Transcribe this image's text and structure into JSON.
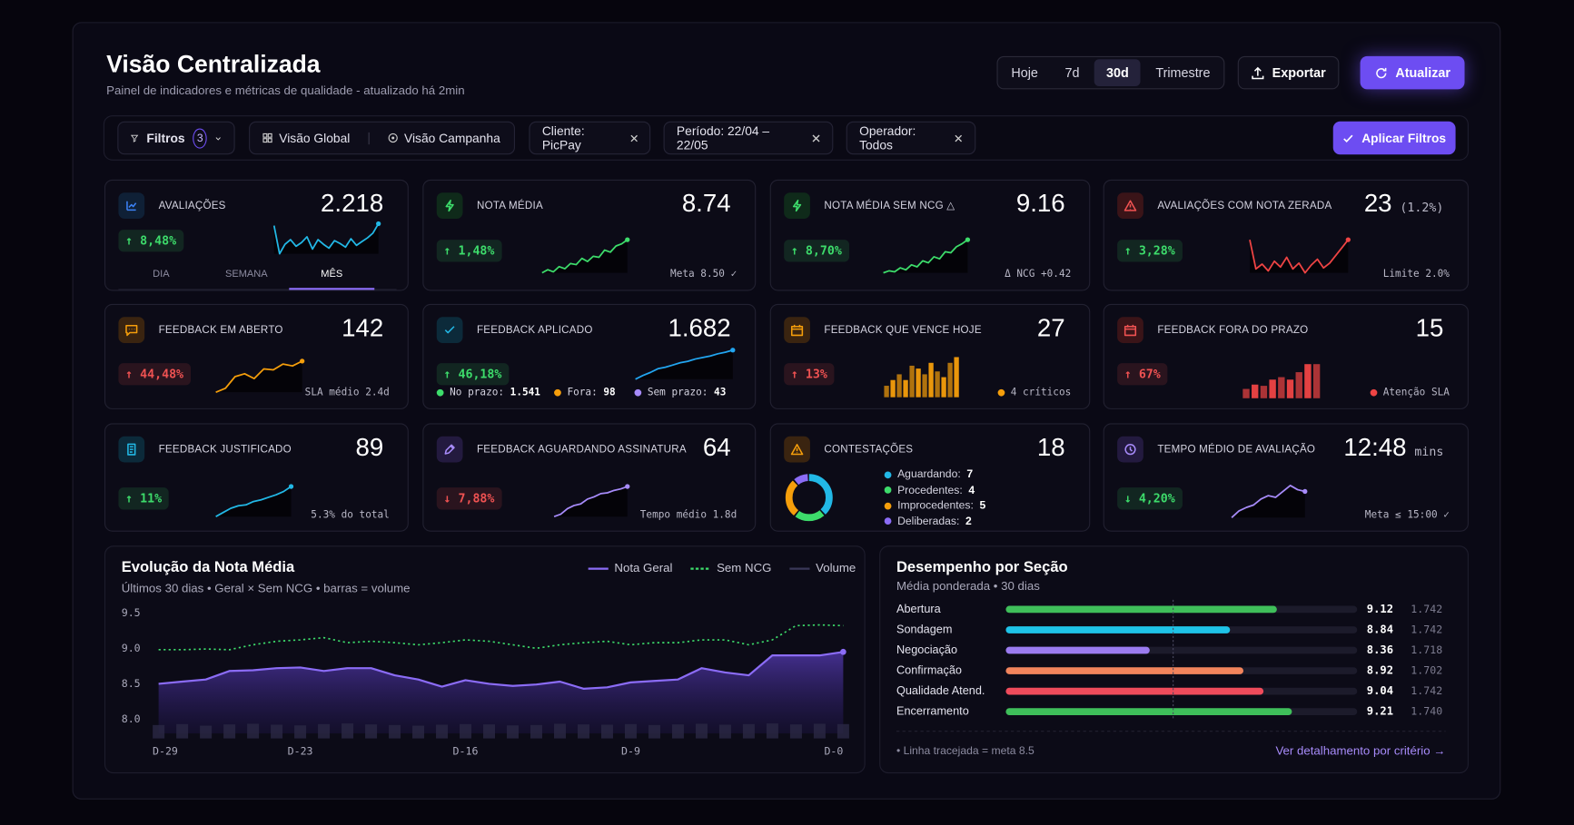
{
  "header": {
    "title": "Visão Centralizada",
    "subtitle": "Painel de indicadores e métricas de qualidade - atualizado há 2min",
    "periods": [
      "Hoje",
      "7d",
      "30d",
      "Trimestre"
    ],
    "active_period": 2,
    "export": "Exportar",
    "refresh": "Atualizar"
  },
  "filters": {
    "label": "Filtros",
    "count": 3,
    "views": [
      "Visão Global",
      "Visão Campanha"
    ],
    "chips": [
      "Cliente: PicPay",
      "Período: 22/04 – 22/05",
      "Operador: Todos"
    ],
    "apply": "Aplicar Filtros"
  },
  "kpis": [
    {
      "title": "AVALIAÇÕES",
      "value": "2.218",
      "delta": "↑ 8,48%",
      "delta_color": "#3ddc6b",
      "tabs": [
        "DIA",
        "SEMANA",
        "MÊS"
      ],
      "active_tab": 2,
      "spark": {
        "type": "line",
        "color": "#22b8e6",
        "values": [
          6,
          3,
          4,
          4.5,
          3.8,
          4.2,
          4.8,
          3.5,
          4.5,
          4,
          3.6,
          4.4,
          4.1,
          3.7,
          4.6,
          3.9,
          4.3,
          4.7,
          5.2,
          6.2
        ]
      }
    },
    {
      "title": "NOTA MÉDIA",
      "value": "8.74",
      "delta": "↑ 1,48%",
      "delta_color": "#3ddc6b",
      "note": "Meta 8.50 ✓",
      "spark": {
        "type": "line",
        "color": "#3ddc6b",
        "values": [
          2,
          2.3,
          2.1,
          2.6,
          2.4,
          2.9,
          2.8,
          3.4,
          3.1,
          3.6,
          3.5,
          4.2,
          4,
          4.6,
          4.8,
          5.2
        ]
      }
    },
    {
      "title": "NOTA MÉDIA SEM NCG △",
      "value": "9.16",
      "delta": "↑ 8,70%",
      "delta_color": "#3ddc6b",
      "note": "Δ NCG +0.42",
      "spark": {
        "type": "line",
        "color": "#3ddc6b",
        "values": [
          2,
          2.2,
          2.1,
          2.5,
          2.3,
          2.8,
          2.6,
          3.2,
          3,
          3.6,
          3.4,
          4.1,
          4,
          4.6,
          4.9,
          5.3
        ]
      }
    },
    {
      "title": "AVALIAÇÕES COM NOTA ZERADA",
      "value": "23",
      "unit": "(1.2%)",
      "delta": "↑ 3,28%",
      "delta_color": "#3ddc6b",
      "note": "Limite 2.0%",
      "spark": {
        "type": "line",
        "color": "#ef4444",
        "values": [
          6,
          3,
          3.5,
          2.8,
          3.8,
          3.2,
          4.2,
          3,
          3.6,
          2.6,
          3.4,
          4,
          3.1,
          3.6,
          4.4,
          5.2,
          6
        ]
      }
    },
    {
      "title": "FEEDBACK EM ABERTO",
      "value": "142",
      "delta": "↑ 44,48%",
      "delta_color": "#f05252",
      "note": "SLA médio 2.4d",
      "spark": {
        "type": "line",
        "color": "#f59e0b",
        "values": [
          1,
          1.4,
          2.6,
          2.9,
          2.4,
          3.4,
          3.3,
          3.9,
          3.7,
          4.2
        ]
      }
    },
    {
      "title": "FEEDBACK APLICADO",
      "value": "1.682",
      "delta": "↑ 46,18%",
      "delta_color": "#3ddc6b",
      "legend": [
        {
          "label": "No prazo:",
          "value": "1.541",
          "color": "#3ddc6b"
        },
        {
          "label": "Fora:",
          "value": "98",
          "color": "#f59e0b"
        },
        {
          "label": "Sem prazo:",
          "value": "43",
          "color": "#a78bfa"
        }
      ],
      "spark": {
        "type": "line",
        "color": "#22a5f0",
        "values": [
          1,
          1.5,
          1.9,
          2.4,
          2.6,
          2.9,
          3.2,
          3.4,
          3.7,
          3.9,
          4.1,
          4.4,
          4.6,
          4.9
        ]
      }
    },
    {
      "title": "FEEDBACK QUE VENCE HOJE",
      "value": "27",
      "delta": "↑ 13%",
      "delta_color": "#f05252",
      "note": "4 críticos",
      "note_color": "#f59e0b",
      "spark": {
        "type": "bars",
        "color": "#f59e0b",
        "values": [
          2,
          3,
          4,
          3,
          5.5,
          5,
          4,
          6,
          4.5,
          3.5,
          6,
          7
        ]
      }
    },
    {
      "title": "FEEDBACK FORA DO PRAZO",
      "value": "15",
      "delta": "↑ 67%",
      "delta_color": "#f05252",
      "note": "Atenção SLA",
      "note_color": "#ef4444",
      "spark": {
        "type": "bars",
        "color": "#ef4444",
        "values": [
          1.5,
          2.2,
          2,
          3,
          3.4,
          3,
          4.2,
          5.5,
          5.5
        ]
      }
    },
    {
      "title": "FEEDBACK JUSTIFICADO",
      "value": "89",
      "delta": "↑ 11%",
      "delta_color": "#3ddc6b",
      "note": "5.3% do total",
      "spark": {
        "type": "line",
        "color": "#22b8e6",
        "values": [
          1,
          1.5,
          2,
          2.3,
          2.4,
          2.8,
          3,
          3.3,
          3.6,
          4,
          4.6
        ]
      }
    },
    {
      "title": "FEEDBACK AGUARDANDO ASSINATURA",
      "value": "64",
      "delta": "↓ 7,88%",
      "delta_color": "#f05252",
      "note": "Tempo médio 1.8d",
      "spark": {
        "type": "line",
        "color": "#a78bfa",
        "values": [
          1,
          1.3,
          2,
          2.4,
          2.6,
          3.2,
          3.5,
          3.9,
          4,
          4.3,
          4.5,
          4.8
        ]
      }
    },
    {
      "title": "CONTESTAÇÕES",
      "value": "18",
      "legend": [
        {
          "label": "Aguardando:",
          "value": 7,
          "color": "#22b8e6"
        },
        {
          "label": "Procedentes:",
          "value": 4,
          "color": "#3ddc6b"
        },
        {
          "label": "Improcedentes:",
          "value": 5,
          "color": "#f59e0b"
        },
        {
          "label": "Deliberadas:",
          "value": 2,
          "color": "#8b6cf6"
        }
      ],
      "spark": {
        "type": "donut"
      }
    },
    {
      "title": "TEMPO MÉDIO DE AVALIAÇÃO",
      "value": "12:48",
      "unit": "mins",
      "delta": "↓ 4,20%",
      "delta_color": "#3ddc6b",
      "note": "Meta ≤ 15:00 ✓",
      "spark": {
        "type": "line",
        "color": "#a78bfa",
        "values": [
          1,
          1.8,
          2.2,
          2.5,
          3.2,
          3.6,
          3.4,
          4.1,
          4.8,
          4.3,
          4.1
        ]
      }
    }
  ],
  "chart_data": [
    {
      "type": "line",
      "title": "Evolução da Nota Média",
      "subtitle": "Últimos 30 dias • Geral × Sem NCG • barras = volume",
      "categories": [
        "D-29",
        null,
        null,
        null,
        null,
        null,
        "D-23",
        null,
        null,
        null,
        null,
        null,
        null,
        "D-16",
        null,
        null,
        null,
        null,
        null,
        null,
        "D-9",
        null,
        null,
        null,
        null,
        null,
        null,
        null,
        null,
        "D-0"
      ],
      "series": [
        {
          "name": "Nota Geral",
          "color": "#8b6cf6",
          "values": [
            8.5,
            8.53,
            8.56,
            8.68,
            8.69,
            8.72,
            8.73,
            8.68,
            8.72,
            8.72,
            8.62,
            8.56,
            8.46,
            8.55,
            8.5,
            8.47,
            8.49,
            8.53,
            8.43,
            8.45,
            8.52,
            8.54,
            8.56,
            8.72,
            8.66,
            8.62,
            8.9,
            8.9,
            8.9,
            8.95
          ]
        },
        {
          "name": "Sem NCG",
          "color": "#3ddc6b",
          "style": "dotted",
          "values": [
            8.98,
            8.98,
            8.99,
            8.98,
            9.05,
            9.1,
            9.12,
            9.15,
            9.08,
            9.1,
            9.08,
            9.05,
            9.08,
            9.12,
            9.1,
            9.05,
            9,
            9.05,
            9.08,
            9.1,
            9.05,
            9.08,
            9.08,
            9.12,
            9.12,
            9.05,
            9.12,
            9.32,
            9.33,
            9.32
          ]
        },
        {
          "name": "Volume",
          "color": "#2a2845",
          "type": "bar",
          "axis": "y2",
          "values": [
            42,
            45,
            40,
            44,
            46,
            43,
            41,
            45,
            47,
            44,
            42,
            40,
            43,
            45,
            44,
            41,
            42,
            46,
            44,
            43,
            45,
            42,
            44,
            46,
            43,
            45,
            47,
            44,
            46,
            45
          ]
        }
      ],
      "ylim": [
        7.8,
        9.6
      ],
      "yticks": [
        9.5,
        {
          "value": 9,
          "label": "9.0"
        },
        8.5,
        {
          "value": 8,
          "label": "8.0"
        }
      ],
      "y2lim": [
        0,
        400
      ],
      "grid": false
    },
    {
      "type": "bar",
      "orientation": "horizontal",
      "title": "Desempenho por Seção",
      "subtitle": "Média ponderada • 30 dias",
      "categories": [
        "Abertura",
        "Sondagem",
        "Negociação",
        "Confirmação",
        "Qualidade Atend.",
        "Encerramento"
      ],
      "values": [
        9.12,
        8.84,
        8.36,
        8.92,
        9.04,
        9.21
      ],
      "colors": [
        "#3fbf5a",
        "#1ec3e8",
        "#9b7bf0",
        "#f2845c",
        "#ef4b5b",
        "#3fbf5a"
      ],
      "counts": [
        "1.742",
        "1.742",
        "1.718",
        "1.702",
        "1.742",
        "1.740"
      ],
      "xlim": [
        7.5,
        9.6
      ],
      "reference": 8.5,
      "note": "• Linha tracejada = meta 8.5",
      "link": "Ver detalhamento por critério →"
    }
  ]
}
